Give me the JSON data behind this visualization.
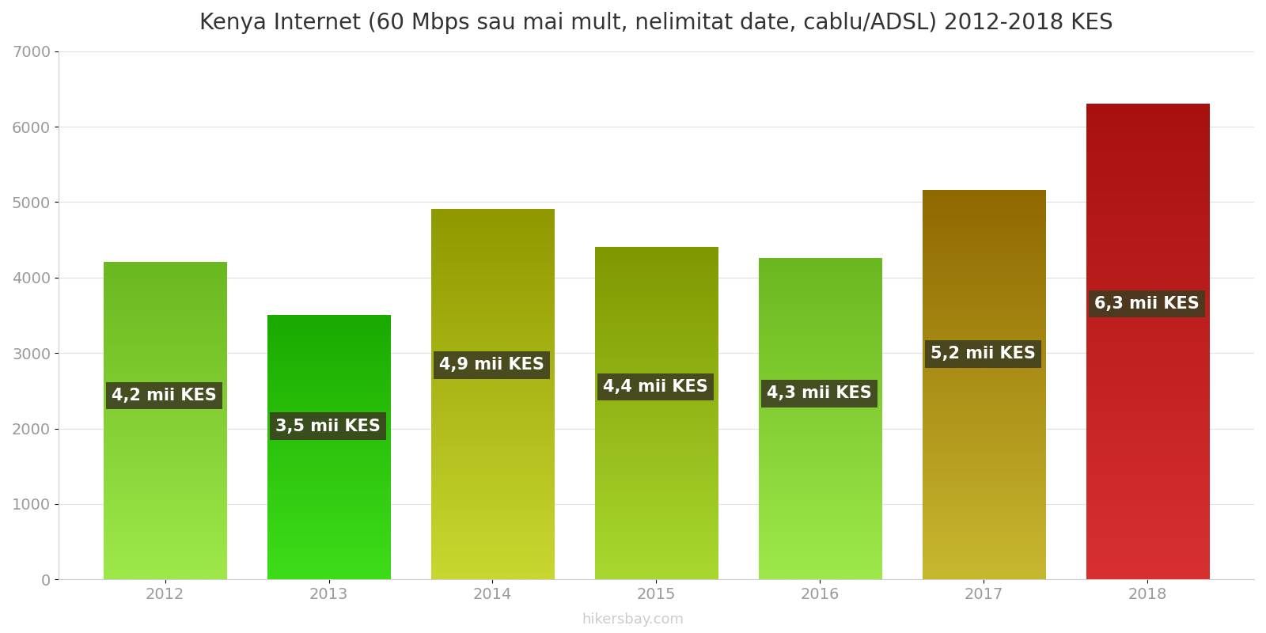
{
  "title": "Kenya Internet (60 Mbps sau mai mult, nelimitat date, cablu/ADSL) 2012-2018 KES",
  "years": [
    2012,
    2013,
    2014,
    2015,
    2016,
    2017,
    2018
  ],
  "values": [
    4200,
    3500,
    4900,
    4400,
    4250,
    5150,
    6300
  ],
  "bar_colors_bottom": [
    "#9EE84A",
    "#3EDD1A",
    "#C8D830",
    "#A8D830",
    "#9EE84A",
    "#C8B830",
    "#D83030"
  ],
  "bar_colors_top": [
    "#6AB820",
    "#1AAA00",
    "#909800",
    "#809800",
    "#6AB820",
    "#906800",
    "#A81010"
  ],
  "labels": [
    "4,2 mii KES",
    "3,5 mii KES",
    "4,9 mii KES",
    "4,4 mii KES",
    "4,3 mii KES",
    "5,2 mii KES",
    "6,3 mii KES"
  ],
  "label_box_color": "#3d3d20",
  "label_text_color": "#ffffff",
  "ylim": [
    0,
    7000
  ],
  "yticks": [
    0,
    1000,
    2000,
    3000,
    4000,
    5000,
    6000,
    7000
  ],
  "watermark": "hikersbay.com",
  "background_color": "#ffffff",
  "title_fontsize": 20,
  "tick_fontsize": 14,
  "label_fontsize": 15,
  "bar_width": 0.75
}
